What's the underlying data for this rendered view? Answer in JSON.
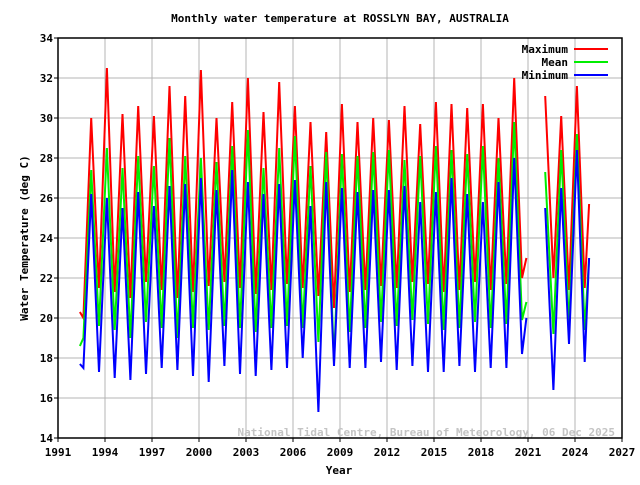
{
  "chart_data": {
    "type": "line",
    "title": "Monthly water temperature at ROSSLYN BAY, AUSTRALIA",
    "xlabel": "Year",
    "ylabel": "Water Temperature (deg C)",
    "xlim": [
      1991,
      2027
    ],
    "ylim": [
      14,
      34
    ],
    "xticks": [
      1991,
      1994,
      1997,
      2000,
      2003,
      2006,
      2009,
      2012,
      2015,
      2018,
      2021,
      2024,
      2027
    ],
    "yticks": [
      14,
      16,
      18,
      20,
      22,
      24,
      26,
      28,
      30,
      32,
      34
    ],
    "grid": true,
    "legend_position": "top-right",
    "watermark": "National Tidal Centre, Bureau of Meteorology, 06 Dec 2025",
    "x": [
      1992.4,
      1992.62,
      1993.12,
      1993.62,
      1994.12,
      1994.62,
      1995.12,
      1995.62,
      1996.12,
      1996.62,
      1997.12,
      1997.62,
      1998.12,
      1998.62,
      1999.12,
      1999.62,
      2000.12,
      2000.62,
      2001.12,
      2001.62,
      2002.12,
      2002.62,
      2003.12,
      2003.62,
      2004.12,
      2004.62,
      2005.12,
      2005.62,
      2006.12,
      2006.62,
      2007.12,
      2007.62,
      2008.12,
      2008.62,
      2009.12,
      2009.62,
      2010.12,
      2010.62,
      2011.12,
      2011.62,
      2012.12,
      2012.62,
      2013.12,
      2013.62,
      2014.12,
      2014.62,
      2015.12,
      2015.62,
      2016.12,
      2016.62,
      2017.12,
      2017.62,
      2018.12,
      2018.62,
      2019.12,
      2019.62,
      2020.12,
      2020.62,
      2020.9,
      null,
      2022.1,
      2022.62,
      2023.12,
      2023.62,
      2024.12,
      2024.62,
      2024.9
    ],
    "series": [
      {
        "name": "Maximum",
        "color": "#ff0000",
        "values": [
          20.3,
          20.0,
          30.0,
          21.5,
          32.5,
          21.3,
          30.2,
          21.0,
          30.6,
          21.8,
          30.1,
          21.4,
          31.6,
          21.0,
          31.1,
          21.3,
          32.4,
          21.6,
          30.0,
          21.8,
          30.8,
          21.5,
          32.0,
          21.2,
          30.3,
          21.4,
          31.8,
          21.7,
          30.6,
          21.5,
          29.8,
          21.1,
          29.3,
          20.5,
          30.7,
          21.3,
          29.8,
          21.4,
          30.0,
          21.6,
          29.9,
          21.5,
          30.6,
          21.8,
          29.7,
          21.7,
          30.8,
          21.3,
          30.7,
          21.4,
          30.5,
          21.8,
          30.7,
          21.4,
          30.0,
          21.7,
          32.0,
          22.0,
          23.0,
          null,
          31.1,
          22.0,
          30.1,
          21.4,
          31.6,
          21.5,
          25.7
        ]
      },
      {
        "name": "Mean",
        "color": "#00ee00",
        "values": [
          18.6,
          19.0,
          27.4,
          19.6,
          28.5,
          19.4,
          27.5,
          19.0,
          28.1,
          19.8,
          27.6,
          19.5,
          29.0,
          19.0,
          28.1,
          19.5,
          28.0,
          19.4,
          27.8,
          19.6,
          28.6,
          19.5,
          29.4,
          19.3,
          27.5,
          19.5,
          28.5,
          19.6,
          29.1,
          19.5,
          27.6,
          18.8,
          28.3,
          17.8,
          28.2,
          19.3,
          28.1,
          19.5,
          28.3,
          19.8,
          28.4,
          19.6,
          27.9,
          19.9,
          28.1,
          19.7,
          28.6,
          19.4,
          28.4,
          19.5,
          28.2,
          19.8,
          28.6,
          19.5,
          28.0,
          19.7,
          29.8,
          19.9,
          20.8,
          null,
          27.3,
          19.2,
          28.4,
          19.6,
          29.2,
          19.4,
          23.0
        ]
      },
      {
        "name": "Minimum",
        "color": "#0000ff",
        "values": [
          17.7,
          17.5,
          26.2,
          17.3,
          26.0,
          17.0,
          25.5,
          16.9,
          26.3,
          17.2,
          25.6,
          17.5,
          26.6,
          17.4,
          26.7,
          17.1,
          27.0,
          16.8,
          26.4,
          17.6,
          27.4,
          17.2,
          26.8,
          17.1,
          26.2,
          17.4,
          26.7,
          17.5,
          26.9,
          18.0,
          25.6,
          15.3,
          26.8,
          17.6,
          26.5,
          17.5,
          26.3,
          17.5,
          26.4,
          17.8,
          26.4,
          17.4,
          26.6,
          17.6,
          25.8,
          17.3,
          26.3,
          17.3,
          27.0,
          17.6,
          26.2,
          17.3,
          25.8,
          17.5,
          26.8,
          17.5,
          28.0,
          18.2,
          20.0,
          null,
          25.5,
          16.4,
          26.5,
          18.7,
          28.4,
          17.8,
          23.0
        ]
      }
    ]
  }
}
